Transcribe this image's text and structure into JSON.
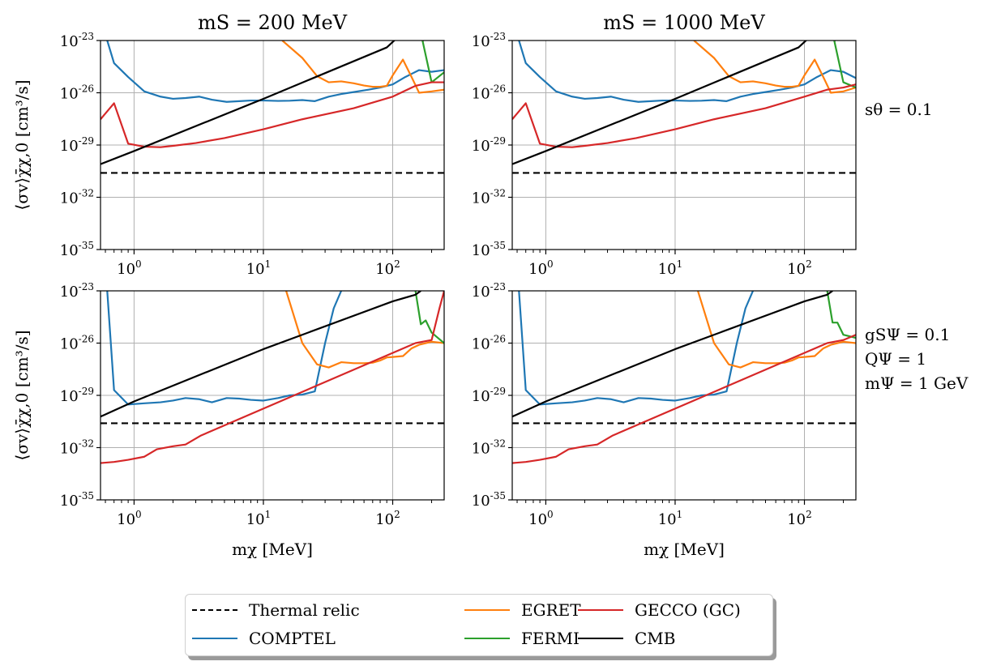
{
  "figure": {
    "legend": [
      {
        "key": "thermal",
        "label": "Thermal relic",
        "color": "#000000",
        "dash": true
      },
      {
        "key": "comptel",
        "label": "COMPTEL",
        "color": "#1f77b4",
        "dash": false
      },
      {
        "key": "egret",
        "label": "EGRET",
        "color": "#ff7f0e",
        "dash": false
      },
      {
        "key": "fermi",
        "label": "FERMI",
        "color": "#2ca02c",
        "dash": false
      },
      {
        "key": "gecco",
        "label": "GECCO (GC)",
        "color": "#d62728",
        "dash": false
      },
      {
        "key": "cmb",
        "label": "CMB",
        "color": "#000000",
        "dash": false
      }
    ],
    "row_labels": [
      [
        "sθ = 0.1"
      ],
      [
        "gSΨ = 0.1",
        "QΨ = 1",
        "mΨ = 1 GeV"
      ]
    ]
  },
  "chart_data": [
    {
      "type": "line",
      "title": "mS = 200 MeV",
      "xlabel": "",
      "ylabel": "⟨σv⟩χ̄χ,0 [cm³/s]",
      "xscale": "log",
      "yscale": "log",
      "xlim": [
        0.55,
        250
      ],
      "ylim": [
        1e-35,
        1e-23
      ],
      "xticks": [
        {
          "base": "10",
          "exp": "0"
        },
        {
          "base": "10",
          "exp": "1"
        },
        {
          "base": "10",
          "exp": "2"
        }
      ],
      "yticks": [
        {
          "base": "10",
          "exp": "-23"
        },
        {
          "base": "10",
          "exp": "-26"
        },
        {
          "base": "10",
          "exp": "-29"
        },
        {
          "base": "10",
          "exp": "-32"
        },
        {
          "base": "10",
          "exp": "-35"
        }
      ],
      "grid": true,
      "series": [
        {
          "key": "thermal",
          "x": [
            0.55,
            250
          ],
          "y": [
            2.5e-31,
            2.5e-31
          ]
        },
        {
          "key": "comptel",
          "x": [
            0.62,
            0.7,
            0.9,
            1.2,
            1.6,
            2.0,
            2.5,
            3.2,
            4.0,
            5.2,
            6.5,
            8.0,
            10,
            13,
            16,
            20,
            25,
            32,
            40,
            50,
            65,
            80,
            100,
            125,
            160,
            200,
            250
          ],
          "y": [
            1e-23,
            5e-25,
            8e-26,
            1.2e-26,
            6e-27,
            4.5e-27,
            5e-27,
            6e-27,
            4e-27,
            3e-27,
            3.3e-27,
            3.6e-27,
            3.6e-27,
            3.4e-27,
            3.5e-27,
            3.8e-27,
            3.3e-27,
            6e-27,
            8.5e-27,
            1.1e-26,
            1.5e-26,
            2e-26,
            3e-26,
            8e-26,
            2e-25,
            1.6e-25,
            2e-25
          ]
        },
        {
          "key": "egret",
          "x": [
            14,
            20,
            26,
            32,
            40,
            50,
            60,
            70,
            80,
            90,
            100,
            120,
            140,
            160,
            200,
            250
          ],
          "y": [
            1e-23,
            1e-24,
            9e-26,
            4e-26,
            4.5e-26,
            3.5e-26,
            2.6e-26,
            2.2e-26,
            2.2e-26,
            2.5e-26,
            1e-25,
            8e-25,
            8e-26,
            1e-26,
            1.2e-26,
            1.5e-26
          ]
        },
        {
          "key": "fermi",
          "x": [
            170,
            200,
            250
          ],
          "y": [
            1e-23,
            4e-26,
            1.5e-25
          ]
        },
        {
          "key": "gecco",
          "x": [
            0.55,
            0.7,
            0.9,
            1.2,
            1.6,
            2.0,
            3.0,
            5.0,
            10,
            20,
            50,
            100,
            150,
            200,
            250
          ],
          "y": [
            3e-28,
            2.5e-27,
            1.2e-29,
            8e-30,
            7.5e-30,
            9e-30,
            1.3e-29,
            2.5e-29,
            8e-29,
            3e-28,
            1.3e-27,
            6e-27,
            2.5e-26,
            4e-26,
            4e-26
          ]
        },
        {
          "key": "cmb",
          "x": [
            0.55,
            1,
            10,
            90,
            130,
            175
          ],
          "y": [
            8e-31,
            4.5e-30,
            4.5e-27,
            4e-24,
            5e-23,
            1e-23
          ]
        }
      ]
    },
    {
      "type": "line",
      "title": "mS = 1000 MeV",
      "xlabel": "",
      "ylabel": "",
      "xscale": "log",
      "yscale": "log",
      "xlim": [
        0.55,
        250
      ],
      "ylim": [
        1e-35,
        1e-23
      ],
      "xticks": [
        {
          "base": "10",
          "exp": "0"
        },
        {
          "base": "10",
          "exp": "1"
        },
        {
          "base": "10",
          "exp": "2"
        }
      ],
      "yticks": [
        {
          "base": "10",
          "exp": "-23"
        },
        {
          "base": "10",
          "exp": "-26"
        },
        {
          "base": "10",
          "exp": "-29"
        },
        {
          "base": "10",
          "exp": "-32"
        },
        {
          "base": "10",
          "exp": "-35"
        }
      ],
      "grid": true,
      "series": [
        {
          "key": "thermal",
          "x": [
            0.55,
            250
          ],
          "y": [
            2.5e-31,
            2.5e-31
          ]
        },
        {
          "key": "comptel",
          "x": [
            0.62,
            0.7,
            0.9,
            1.2,
            1.6,
            2.0,
            2.5,
            3.2,
            4.0,
            5.2,
            6.5,
            8.0,
            10,
            13,
            16,
            20,
            25,
            32,
            40,
            50,
            65,
            80,
            100,
            125,
            160,
            200,
            250
          ],
          "y": [
            1e-23,
            5e-25,
            8e-26,
            1.2e-26,
            6e-27,
            4.5e-27,
            5e-27,
            6e-27,
            4e-27,
            3e-27,
            3.3e-27,
            3.6e-27,
            3.6e-27,
            3.4e-27,
            3.5e-27,
            3.8e-27,
            3.3e-27,
            6e-27,
            8.5e-27,
            1.1e-26,
            1.5e-26,
            2e-26,
            3e-26,
            8e-26,
            2e-25,
            1.6e-25,
            7e-26
          ]
        },
        {
          "key": "egret",
          "x": [
            14,
            20,
            26,
            32,
            40,
            50,
            60,
            70,
            80,
            90,
            100,
            120,
            140,
            160,
            200,
            250
          ],
          "y": [
            1e-23,
            1e-24,
            9e-26,
            4e-26,
            4.5e-26,
            3.5e-26,
            2.6e-26,
            2.2e-26,
            2.2e-26,
            2.5e-26,
            1e-25,
            8e-25,
            8e-26,
            1e-26,
            1.2e-26,
            2e-26
          ]
        },
        {
          "key": "fermi",
          "x": [
            170,
            200,
            250
          ],
          "y": [
            1e-23,
            4e-26,
            2e-26
          ]
        },
        {
          "key": "gecco",
          "x": [
            0.55,
            0.7,
            0.9,
            1.2,
            1.6,
            2.0,
            3.0,
            5.0,
            10,
            20,
            50,
            100,
            150,
            200,
            250
          ],
          "y": [
            3e-28,
            2.5e-27,
            1.2e-29,
            8e-30,
            7.5e-30,
            9e-30,
            1.3e-29,
            2.5e-29,
            8e-29,
            3e-28,
            1.3e-27,
            6e-27,
            1.5e-26,
            2e-26,
            3e-26
          ]
        },
        {
          "key": "cmb",
          "x": [
            0.55,
            1,
            10,
            90,
            130,
            175
          ],
          "y": [
            8e-31,
            4.5e-30,
            4.5e-27,
            4e-24,
            5e-23,
            1e-23
          ]
        }
      ]
    },
    {
      "type": "line",
      "title": "",
      "xlabel": "mχ [MeV]",
      "ylabel": "⟨σv⟩χ̄χ,0 [cm³/s]",
      "xscale": "log",
      "yscale": "log",
      "xlim": [
        0.55,
        250
      ],
      "ylim": [
        1e-35,
        1e-23
      ],
      "xticks": [
        {
          "base": "10",
          "exp": "0"
        },
        {
          "base": "10",
          "exp": "1"
        },
        {
          "base": "10",
          "exp": "2"
        }
      ],
      "yticks": [
        {
          "base": "10",
          "exp": "-23"
        },
        {
          "base": "10",
          "exp": "-26"
        },
        {
          "base": "10",
          "exp": "-29"
        },
        {
          "base": "10",
          "exp": "-32"
        },
        {
          "base": "10",
          "exp": "-35"
        }
      ],
      "grid": true,
      "series": [
        {
          "key": "thermal",
          "x": [
            0.55,
            250
          ],
          "y": [
            2.5e-31,
            2.5e-31
          ]
        },
        {
          "key": "comptel",
          "x": [
            0.62,
            0.7,
            0.9,
            1.2,
            1.6,
            2.0,
            2.5,
            3.2,
            4.0,
            5.2,
            6.5,
            8.0,
            10,
            13,
            16,
            20,
            25,
            30,
            35,
            40
          ],
          "y": [
            1e-23,
            2e-29,
            3e-30,
            3.5e-30,
            4e-30,
            5e-30,
            7e-30,
            6e-30,
            4e-30,
            7e-30,
            6.5e-30,
            5.5e-30,
            5e-30,
            7e-30,
            1e-29,
            1.1e-29,
            1.7e-29,
            1e-26,
            1e-24,
            1e-23
          ]
        },
        {
          "key": "egret",
          "x": [
            15,
            20,
            26,
            32,
            40,
            50,
            60,
            70,
            80,
            90,
            100,
            120,
            140,
            160,
            200,
            250
          ],
          "y": [
            1e-23,
            1e-26,
            6e-28,
            4e-28,
            8e-28,
            7e-28,
            7e-28,
            7.5e-28,
            1e-27,
            1.5e-27,
            1.6e-27,
            1.8e-27,
            5e-27,
            8e-27,
            1.2e-26,
            1e-26
          ]
        },
        {
          "key": "fermi",
          "x": [
            150,
            165,
            180,
            200,
            250
          ],
          "y": [
            1e-23,
            1.2e-25,
            2e-25,
            4e-26,
            1e-26
          ]
        },
        {
          "key": "gecco",
          "x": [
            0.55,
            0.7,
            0.9,
            1.2,
            1.5,
            2.0,
            2.5,
            3.3,
            150,
            200,
            230,
            250
          ],
          "y": [
            1.3e-33,
            1.5e-33,
            2e-33,
            3e-33,
            8e-33,
            1.2e-32,
            1.5e-32,
            5e-32,
            1e-26,
            1.5e-26,
            1e-24,
            1e-23
          ]
        },
        {
          "key": "cmb",
          "x": [
            0.55,
            1,
            10,
            100,
            150,
            165
          ],
          "y": [
            6e-31,
            4.5e-30,
            4.5e-27,
            2.5e-24,
            6e-24,
            1e-23
          ]
        }
      ]
    },
    {
      "type": "line",
      "title": "",
      "xlabel": "mχ [MeV]",
      "ylabel": "",
      "xscale": "log",
      "yscale": "log",
      "xlim": [
        0.55,
        250
      ],
      "ylim": [
        1e-35,
        1e-23
      ],
      "xticks": [
        {
          "base": "10",
          "exp": "0"
        },
        {
          "base": "10",
          "exp": "1"
        },
        {
          "base": "10",
          "exp": "2"
        }
      ],
      "yticks": [
        {
          "base": "10",
          "exp": "-23"
        },
        {
          "base": "10",
          "exp": "-26"
        },
        {
          "base": "10",
          "exp": "-29"
        },
        {
          "base": "10",
          "exp": "-32"
        },
        {
          "base": "10",
          "exp": "-35"
        }
      ],
      "grid": true,
      "series": [
        {
          "key": "thermal",
          "x": [
            0.55,
            250
          ],
          "y": [
            2.5e-31,
            2.5e-31
          ]
        },
        {
          "key": "comptel",
          "x": [
            0.62,
            0.7,
            0.9,
            1.2,
            1.6,
            2.0,
            2.5,
            3.2,
            4.0,
            5.2,
            6.5,
            8.0,
            10,
            13,
            16,
            20,
            25,
            30,
            35,
            40
          ],
          "y": [
            1e-23,
            2e-29,
            3e-30,
            3.5e-30,
            4e-30,
            5e-30,
            7e-30,
            6e-30,
            4e-30,
            7e-30,
            6.5e-30,
            5.5e-30,
            5e-30,
            7e-30,
            1e-29,
            1.1e-29,
            1.7e-29,
            1e-26,
            1e-24,
            1e-23
          ]
        },
        {
          "key": "egret",
          "x": [
            15,
            20,
            26,
            32,
            40,
            50,
            60,
            70,
            80,
            90,
            100,
            120,
            140,
            160,
            200,
            250
          ],
          "y": [
            1e-23,
            1e-26,
            6e-28,
            4e-28,
            8e-28,
            7e-28,
            7e-28,
            7.5e-28,
            1e-27,
            1.5e-27,
            1.6e-27,
            1.8e-27,
            5e-27,
            8e-27,
            1.2e-26,
            1e-26
          ]
        },
        {
          "key": "fermi",
          "x": [
            150,
            165,
            180,
            200,
            250
          ],
          "y": [
            1e-23,
            1.5e-25,
            1.5e-25,
            3e-26,
            2e-26
          ]
        },
        {
          "key": "gecco",
          "x": [
            0.55,
            0.7,
            0.9,
            1.2,
            1.5,
            2.0,
            2.5,
            3.3,
            150,
            200,
            250
          ],
          "y": [
            1.3e-33,
            1.5e-33,
            2e-33,
            3e-33,
            8e-33,
            1.2e-32,
            1.5e-32,
            5e-32,
            1e-26,
            1.5e-26,
            3e-26
          ]
        },
        {
          "key": "cmb",
          "x": [
            0.55,
            1,
            10,
            100,
            150,
            165
          ],
          "y": [
            6e-31,
            4.5e-30,
            4.5e-27,
            2.5e-24,
            6e-24,
            1e-23
          ]
        }
      ]
    }
  ]
}
